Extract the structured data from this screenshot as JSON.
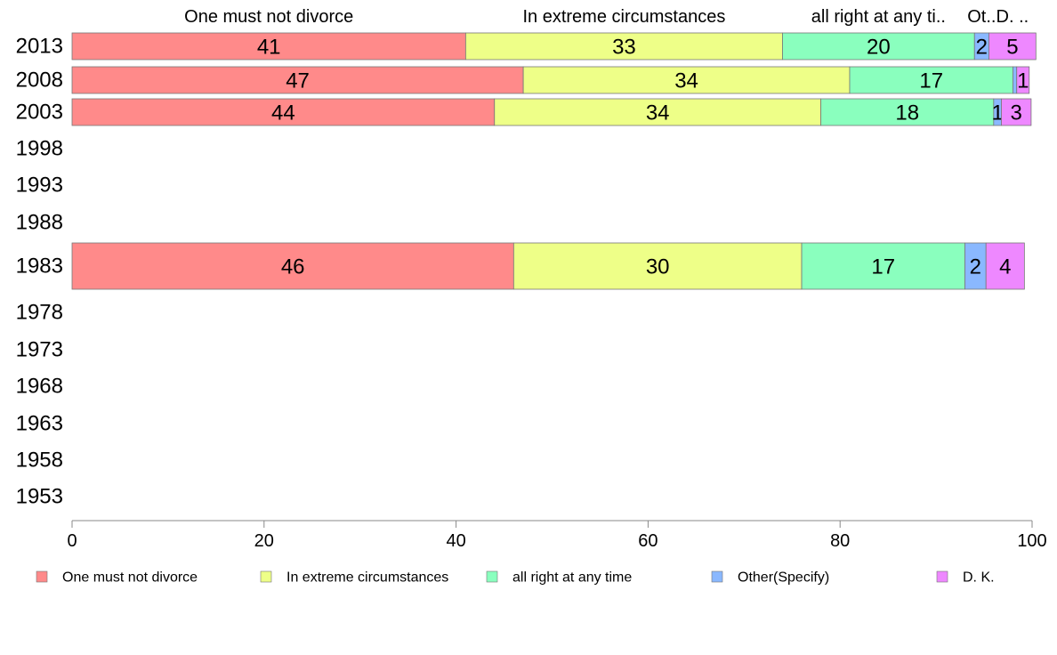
{
  "chart_data": {
    "type": "bar",
    "orientation": "horizontal",
    "stacked": true,
    "categories": [
      "2013",
      "2008",
      "2003",
      "1998",
      "1993",
      "1988",
      "1983",
      "1978",
      "1973",
      "1968",
      "1963",
      "1958",
      "1953"
    ],
    "series": [
      {
        "name": "One must not divorce",
        "color": "#ff8a8a",
        "values": [
          41,
          47,
          44,
          null,
          null,
          null,
          46,
          null,
          null,
          null,
          null,
          null,
          null
        ],
        "labels": [
          "41",
          "47",
          "44",
          "",
          "",
          "",
          "46",
          "",
          "",
          "",
          "",
          "",
          ""
        ]
      },
      {
        "name": "In extreme circumstances",
        "color": "#eeff88",
        "values": [
          33,
          34,
          34,
          null,
          null,
          null,
          30,
          null,
          null,
          null,
          null,
          null,
          null
        ],
        "labels": [
          "33",
          "34",
          "34",
          "",
          "",
          "",
          "30",
          "",
          "",
          "",
          "",
          "",
          ""
        ]
      },
      {
        "name": "all right at any time",
        "color": "#8affbe",
        "values": [
          20,
          17,
          18,
          null,
          null,
          null,
          17,
          null,
          null,
          null,
          null,
          null,
          null
        ],
        "labels": [
          "20",
          "17",
          "18",
          "",
          "",
          "",
          "17",
          "",
          "",
          "",
          "",
          "",
          ""
        ]
      },
      {
        "name": "Other(Specify)",
        "color": "#8ab8ff",
        "values": [
          1.5,
          0.4,
          0.8,
          null,
          null,
          null,
          2.2,
          null,
          null,
          null,
          null,
          null,
          null
        ],
        "labels": [
          "2",
          "",
          "1",
          "",
          "",
          "",
          "2",
          "",
          "",
          "",
          "",
          "",
          ""
        ]
      },
      {
        "name": "D. K.",
        "color": "#ee88ff",
        "values": [
          4.9,
          1.3,
          3.1,
          null,
          null,
          null,
          4.0,
          null,
          null,
          null,
          null,
          null,
          null
        ],
        "labels": [
          "5",
          "1",
          "3",
          "",
          "",
          "",
          "4",
          "",
          "",
          "",
          "",
          "",
          ""
        ]
      }
    ],
    "column_headers": [
      "One must not divorce",
      "In extreme circumstances",
      "all right at any ti..",
      "Ot..",
      "D. .."
    ],
    "xlim": [
      0,
      100
    ],
    "xticks": [
      "0",
      "20",
      "40",
      "60",
      "80",
      "100"
    ],
    "legend": {
      "position": "bottom",
      "items": [
        "One must not divorce",
        "In extreme circumstances",
        "all right at any time",
        "Other(Specify)",
        "D. K."
      ]
    },
    "grid": false
  }
}
